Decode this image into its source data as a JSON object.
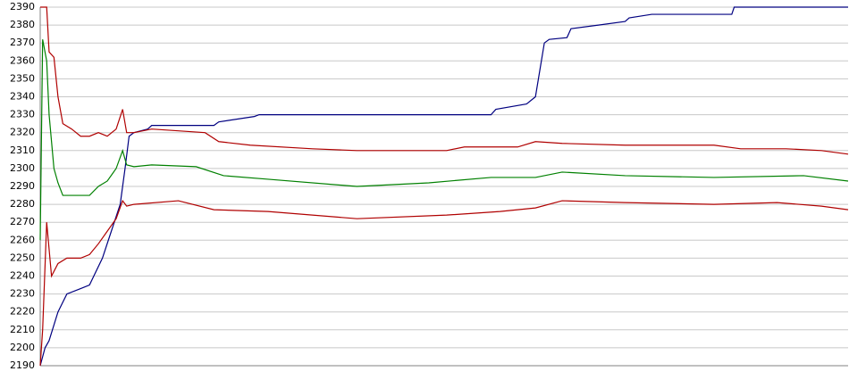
{
  "chart_data": {
    "type": "line",
    "xlim": [
      0,
      100
    ],
    "ylim": [
      2190,
      2390
    ],
    "yticks": [
      2190,
      2200,
      2210,
      2220,
      2230,
      2240,
      2250,
      2260,
      2270,
      2280,
      2290,
      2300,
      2310,
      2320,
      2330,
      2340,
      2350,
      2360,
      2370,
      2380,
      2390
    ],
    "grid": true,
    "series": [
      {
        "color": "#000080",
        "x": [
          0,
          0.6,
          1.1,
          2.2,
          3.3,
          5,
          6.1,
          7.7,
          8.8,
          9.9,
          10.5,
          11,
          11.6,
          13.3,
          13.8,
          21.5,
          22.1,
          26.5,
          27.1,
          55.8,
          56.4,
          60.2,
          61.3,
          62.4,
          63,
          65.2,
          65.7,
          69.1,
          72.4,
          72.9,
          75.7,
          85.6,
          85.9,
          100
        ],
        "values": [
          2190,
          2200,
          2204,
          2220,
          2230,
          2233,
          2235,
          2250,
          2265,
          2280,
          2300,
          2318,
          2320,
          2322,
          2324,
          2324,
          2326,
          2329,
          2330,
          2330,
          2333,
          2336,
          2340,
          2370,
          2372,
          2373,
          2378,
          2380,
          2382,
          2384,
          2386,
          2386,
          2390,
          2390
        ]
      },
      {
        "color": "#b00000",
        "x": [
          0,
          0.8,
          1.1,
          1.7,
          2.2,
          2.8,
          3.9,
          5,
          6.1,
          7.2,
          8.3,
          9.4,
          10.2,
          10.7,
          11.6,
          13.8,
          17.1,
          20.4,
          22.1,
          26,
          33.7,
          39.2,
          50.3,
          52.5,
          59.1,
          61.3,
          64.6,
          72.4,
          83.4,
          86.7,
          92.3,
          96.7,
          100
        ],
        "values": [
          2390,
          2390,
          2365,
          2362,
          2340,
          2325,
          2322,
          2318,
          2318,
          2320,
          2318,
          2322,
          2333,
          2320,
          2320,
          2322,
          2321,
          2320,
          2315,
          2313,
          2311,
          2310,
          2310,
          2312,
          2312,
          2315,
          2314,
          2313,
          2313,
          2311,
          2311,
          2310,
          2308
        ]
      },
      {
        "color": "#008000",
        "x": [
          0,
          0.3,
          0.8,
          1.1,
          1.7,
          2.2,
          2.8,
          3.9,
          6.1,
          7.2,
          8.3,
          9.4,
          10.2,
          10.7,
          11.6,
          13.8,
          19.3,
          22.7,
          28.2,
          39.2,
          48.1,
          55.8,
          61.3,
          64.6,
          72.4,
          83.4,
          94.5,
          100
        ],
        "values": [
          2260,
          2372,
          2360,
          2330,
          2300,
          2292,
          2285,
          2285,
          2285,
          2290,
          2293,
          2300,
          2310,
          2302,
          2301,
          2302,
          2301,
          2296,
          2294,
          2290,
          2292,
          2295,
          2295,
          2298,
          2296,
          2295,
          2296,
          2293
        ]
      },
      {
        "color": "#b00000",
        "x": [
          0,
          0.3,
          0.8,
          1.4,
          2.2,
          3.3,
          5,
          6.1,
          7.2,
          8.3,
          9.4,
          10.2,
          10.7,
          11.6,
          17.1,
          21.5,
          28.2,
          39.2,
          50.3,
          56.9,
          61.3,
          64.6,
          72.4,
          83.4,
          91.2,
          96.7,
          100
        ],
        "values": [
          2190,
          2210,
          2270,
          2240,
          2247,
          2250,
          2250,
          2252,
          2258,
          2265,
          2272,
          2282,
          2279,
          2280,
          2282,
          2277,
          2276,
          2272,
          2274,
          2276,
          2278,
          2282,
          2281,
          2280,
          2281,
          2279,
          2277
        ]
      }
    ]
  }
}
